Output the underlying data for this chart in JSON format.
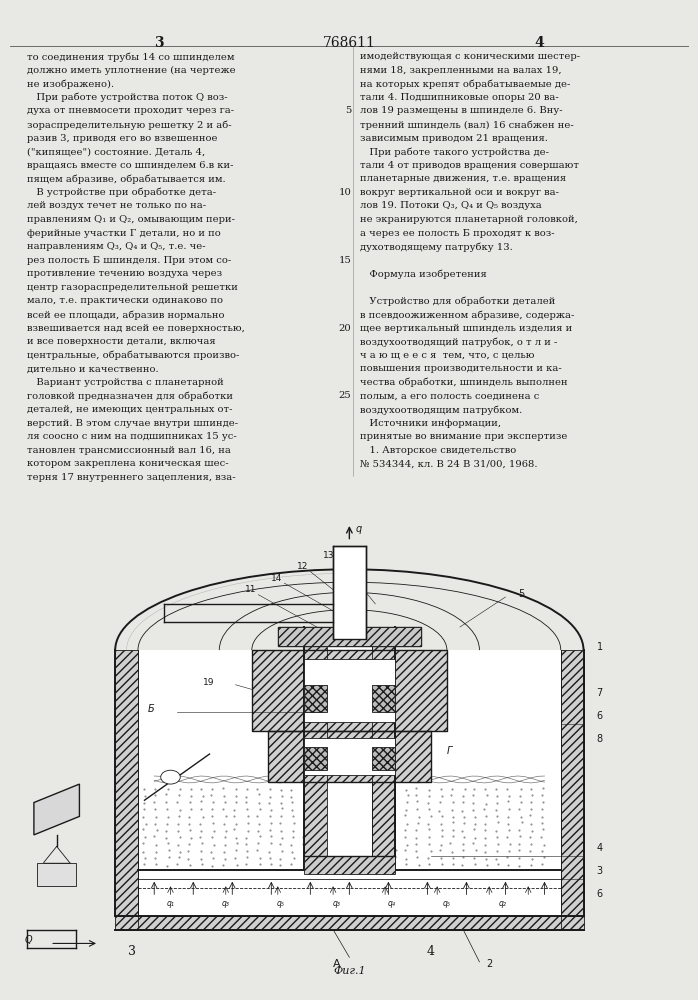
{
  "bg_color": "#e8e8e4",
  "page_color": "#f0f0ec",
  "header_number": "768611",
  "page_left": "3",
  "page_right": "4",
  "text_color": "#1a1a1a",
  "font_size_body": 7.2,
  "font_size_header": 9,
  "col1_text": [
    "то соединения трубы 14 со шпинделем",
    "должно иметь уплотнение (на чертеже",
    "не изображено).",
    "   При работе устройства поток Q воз-",
    "духа от пневмосети проходит через га-",
    "зораспределительную решетку 2 и аб-",
    "разив 3, приводя его во взвешенное",
    "(\"кипящее\") состояние. Деталь 4,",
    "вращаясь вместе со шпинделем 6.в ки-",
    "пящем абразиве, обрабатывается им.",
    "   В устройстве при обработке дета-",
    "лей воздух течет не только по на-",
    "правлениям Q₁ и Q₂, омывающим пери-",
    "ферийные участки Г детали, но и по",
    "направлениям Q₃, Q₄ и Q₅, т.е. че-",
    "рез полость Б шпинделя. При этом со-",
    "противление течению воздуха через",
    "центр газораспределительной решетки",
    "мало, т.е. практически одинаково по",
    "всей ее площади, абразив нормально",
    "взвешивается над всей ее поверхностью,",
    "и все поверхности детали, включая",
    "центральные, обрабатываются произво-",
    "дительно и качественно.",
    "   Вариант устройства с планетарной",
    "головкой предназначен для обработки",
    "деталей, не имеющих центральных от-",
    "верстий. В этом случае внутри шпинде-",
    "ля соосно с ним на подшипниках 15 ус-",
    "тановлен трансмиссионный вал 16, на",
    "котором закреплена коническая шес-",
    "терня 17 внутреннего зацепления, вза-"
  ],
  "col2_text_with_numbers": [
    [
      "",
      "имодействующая с коническими шестер-"
    ],
    [
      "",
      "нями 18, закрепленными на валах 19,"
    ],
    [
      "",
      "на которых крепят обрабатываемые де-"
    ],
    [
      "",
      "тали 4. Подшипниковые опоры 20 ва-"
    ],
    [
      "5",
      "лов 19 размещены в шпинделе 6. Вну-"
    ],
    [
      "",
      "тренний шпиндель (вал) 16 снабжен не-"
    ],
    [
      "",
      "зависимым приводом 21 вращения."
    ],
    [
      "",
      "   При работе такого устройства де-"
    ],
    [
      "",
      "тали 4 от приводов вращения совершают"
    ],
    [
      "",
      "планетарные движения, т.е. вращения"
    ],
    [
      "10",
      "вокруг вертикальной оси и вокруг ва-"
    ],
    [
      "",
      "лов 19. Потоки Q₃, Q₄ и Q₅ воздуха"
    ],
    [
      "",
      "не экранируются планетарной головкой,"
    ],
    [
      "",
      "а через ее полость Б проходят к воз-"
    ],
    [
      "",
      "духотводящему патрубку 13."
    ],
    [
      "15",
      ""
    ],
    [
      "",
      "   Формула изобретения"
    ],
    [
      "",
      ""
    ],
    [
      "",
      "   Устройство для обработки деталей"
    ],
    [
      "",
      "в псевдоожиженном абразиве, содержа-"
    ],
    [
      "20",
      "щее вертикальный шпиндель изделия и"
    ],
    [
      "",
      "воздухоотводящий патрубок, о т л и -"
    ],
    [
      "",
      "ч а ю щ е е с я  тем, что, с целью"
    ],
    [
      "",
      "повышения производительности и ка-"
    ],
    [
      "",
      "чества обработки, шпиндель выполнен"
    ],
    [
      "25",
      "полым, а его полость соединена с"
    ],
    [
      "",
      "воздухоотводящим патрубком."
    ],
    [
      "",
      "   Источники информации,"
    ],
    [
      "",
      "принятые во внимание при экспертизе"
    ],
    [
      "",
      "   1. Авторское свидетельство"
    ],
    [
      "",
      "№ 534344, кл. В 24 В 31/00, 1968."
    ]
  ],
  "fig_label": "Фиг.1"
}
